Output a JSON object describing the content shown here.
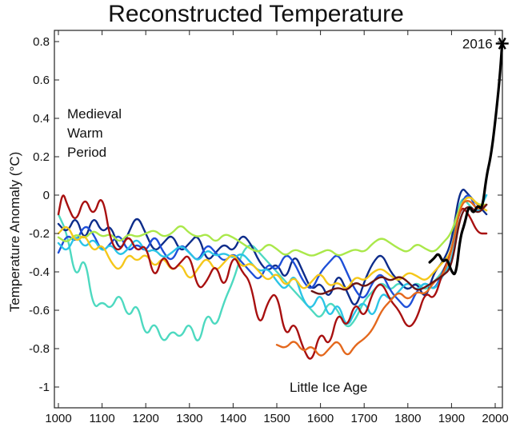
{
  "chart_data": {
    "type": "line",
    "title": "Reconstructed Temperature",
    "xlabel": "",
    "ylabel": "Temperature Anomaly (°C)",
    "xlim": [
      1000,
      2000
    ],
    "ylim": [
      -1.05,
      0.85
    ],
    "xticks": [
      1000,
      1100,
      1200,
      1300,
      1400,
      1500,
      1600,
      1700,
      1800,
      1900,
      2000
    ],
    "yticks": [
      -1,
      -0.8,
      -0.6,
      -0.4,
      -0.2,
      0,
      0.2,
      0.4,
      0.6,
      0.8
    ],
    "ytick_labels": [
      "-1",
      "-0.8",
      "-0.6",
      "-0.4",
      "-0.2",
      "0",
      "0.2",
      "0.4",
      "0.6",
      "0.8"
    ],
    "grid": false,
    "annotations": {
      "medieval": [
        "Medieval",
        "Warm",
        "Period"
      ],
      "little_ice_age": "Little Ice Age",
      "marker_label": "2016",
      "marker": {
        "x": 2016,
        "y": 0.79
      }
    },
    "series": [
      {
        "color": "#4dd9c0",
        "x": [
          1000,
          1020,
          1040,
          1060,
          1080,
          1100,
          1120,
          1140,
          1160,
          1180,
          1200,
          1220,
          1240,
          1260,
          1280,
          1300,
          1320,
          1340,
          1360,
          1380,
          1400,
          1420,
          1440,
          1460,
          1480,
          1500,
          1520,
          1540,
          1560,
          1580,
          1600,
          1620,
          1640,
          1660,
          1680,
          1700,
          1720,
          1740,
          1760,
          1780,
          1800,
          1820,
          1840,
          1860,
          1880,
          1900,
          1920,
          1940,
          1960,
          1980
        ],
        "y": [
          -0.1,
          -0.2,
          -0.45,
          -0.3,
          -0.6,
          -0.55,
          -0.6,
          -0.5,
          -0.65,
          -0.55,
          -0.75,
          -0.65,
          -0.78,
          -0.7,
          -0.75,
          -0.65,
          -0.8,
          -0.6,
          -0.7,
          -0.55,
          -0.45,
          -0.3,
          -0.25,
          -0.3,
          -0.35,
          -0.4,
          -0.45,
          -0.5,
          -0.55,
          -0.6,
          -0.65,
          -0.55,
          -0.6,
          -0.7,
          -0.65,
          -0.55,
          -0.5,
          -0.45,
          -0.5,
          -0.45,
          -0.5,
          -0.45,
          -0.5,
          -0.45,
          -0.4,
          -0.3,
          0.0,
          -0.05,
          -0.1,
          -0.05
        ]
      },
      {
        "color": "#0d2c8a",
        "x": [
          1000,
          1020,
          1040,
          1060,
          1080,
          1100,
          1120,
          1140,
          1160,
          1180,
          1200,
          1220,
          1240,
          1260,
          1280,
          1300,
          1320,
          1340,
          1360,
          1380,
          1400,
          1420,
          1440,
          1460,
          1480,
          1500,
          1520,
          1540,
          1560,
          1580,
          1600,
          1620,
          1640,
          1660,
          1680,
          1700,
          1720,
          1740,
          1760,
          1780,
          1800,
          1820,
          1840,
          1860,
          1880,
          1900,
          1920,
          1940,
          1960,
          1980
        ],
        "y": [
          -0.15,
          -0.2,
          -0.1,
          -0.25,
          -0.1,
          -0.2,
          -0.15,
          -0.3,
          -0.2,
          -0.1,
          -0.2,
          -0.3,
          -0.25,
          -0.2,
          -0.3,
          -0.25,
          -0.2,
          -0.35,
          -0.3,
          -0.25,
          -0.3,
          -0.2,
          -0.25,
          -0.35,
          -0.4,
          -0.35,
          -0.45,
          -0.3,
          -0.4,
          -0.5,
          -0.45,
          -0.55,
          -0.4,
          -0.5,
          -0.6,
          -0.45,
          -0.35,
          -0.3,
          -0.4,
          -0.45,
          -0.5,
          -0.45,
          -0.55,
          -0.4,
          -0.35,
          -0.25,
          0.05,
          0.0,
          -0.05,
          -0.1
        ]
      },
      {
        "color": "#1e4fd8",
        "x": [
          1000,
          1020,
          1040,
          1060,
          1080,
          1100,
          1120,
          1140,
          1160,
          1180,
          1200,
          1220,
          1240,
          1260,
          1280,
          1300,
          1320,
          1340,
          1360,
          1380,
          1400,
          1420,
          1440,
          1460,
          1480,
          1500,
          1520,
          1540,
          1560,
          1580,
          1600,
          1620,
          1640,
          1660,
          1680,
          1700,
          1720,
          1740,
          1760,
          1780,
          1800,
          1820,
          1840,
          1860,
          1880,
          1900,
          1920,
          1940,
          1960,
          1980
        ],
        "y": [
          -0.3,
          -0.2,
          -0.25,
          -0.15,
          -0.2,
          -0.3,
          -0.25,
          -0.2,
          -0.3,
          -0.25,
          -0.3,
          -0.2,
          -0.3,
          -0.35,
          -0.25,
          -0.3,
          -0.35,
          -0.25,
          -0.3,
          -0.35,
          -0.3,
          -0.35,
          -0.4,
          -0.45,
          -0.35,
          -0.4,
          -0.3,
          -0.35,
          -0.45,
          -0.5,
          -0.4,
          -0.35,
          -0.3,
          -0.4,
          -0.5,
          -0.55,
          -0.45,
          -0.4,
          -0.5,
          -0.55,
          -0.6,
          -0.5,
          -0.45,
          -0.5,
          -0.4,
          -0.3,
          -0.05,
          0.02,
          -0.1,
          -0.05
        ]
      },
      {
        "color": "#2bc4e6",
        "x": [
          1000,
          1020,
          1040,
          1060,
          1080,
          1100,
          1120,
          1140,
          1160,
          1180,
          1200,
          1220,
          1240,
          1260,
          1280,
          1300,
          1320,
          1340,
          1360,
          1380,
          1400,
          1420,
          1440,
          1460,
          1480,
          1500,
          1520,
          1540,
          1560,
          1580,
          1600,
          1620,
          1640,
          1660,
          1680,
          1700,
          1720,
          1740,
          1760,
          1780,
          1800,
          1820,
          1840,
          1860,
          1880,
          1900,
          1920,
          1940,
          1960,
          1980
        ],
        "y": [
          -0.25,
          -0.3,
          -0.2,
          -0.28,
          -0.22,
          -0.3,
          -0.25,
          -0.32,
          -0.28,
          -0.22,
          -0.3,
          -0.28,
          -0.33,
          -0.3,
          -0.26,
          -0.3,
          -0.35,
          -0.28,
          -0.32,
          -0.3,
          -0.33,
          -0.3,
          -0.35,
          -0.4,
          -0.38,
          -0.45,
          -0.5,
          -0.4,
          -0.55,
          -0.6,
          -0.5,
          -0.65,
          -0.55,
          -0.7,
          -0.6,
          -0.55,
          -0.65,
          -0.5,
          -0.55,
          -0.5,
          -0.45,
          -0.5,
          -0.45,
          -0.5,
          -0.42,
          -0.35,
          -0.1,
          -0.05,
          -0.1,
          0.0
        ]
      },
      {
        "color": "#aae84a",
        "x": [
          1000,
          1020,
          1040,
          1060,
          1080,
          1100,
          1120,
          1140,
          1160,
          1180,
          1200,
          1220,
          1240,
          1260,
          1280,
          1300,
          1320,
          1340,
          1360,
          1380,
          1400,
          1420,
          1440,
          1460,
          1480,
          1500,
          1520,
          1540,
          1560,
          1580,
          1600,
          1620,
          1640,
          1660,
          1680,
          1700,
          1720,
          1740,
          1760,
          1780,
          1800,
          1820,
          1840,
          1860,
          1880,
          1900,
          1920,
          1940,
          1960,
          1980
        ],
        "y": [
          -0.22,
          -0.25,
          -0.2,
          -0.23,
          -0.18,
          -0.22,
          -0.2,
          -0.25,
          -0.2,
          -0.22,
          -0.2,
          -0.18,
          -0.22,
          -0.2,
          -0.15,
          -0.2,
          -0.22,
          -0.2,
          -0.25,
          -0.2,
          -0.22,
          -0.25,
          -0.28,
          -0.3,
          -0.25,
          -0.28,
          -0.32,
          -0.28,
          -0.3,
          -0.32,
          -0.3,
          -0.28,
          -0.32,
          -0.3,
          -0.28,
          -0.3,
          -0.25,
          -0.22,
          -0.25,
          -0.28,
          -0.3,
          -0.25,
          -0.28,
          -0.3,
          -0.25,
          -0.2,
          -0.05,
          0.0,
          -0.05,
          -0.05
        ]
      },
      {
        "color": "#f5c71a",
        "x": [
          1000,
          1020,
          1040,
          1060,
          1080,
          1100,
          1120,
          1140,
          1160,
          1180,
          1200,
          1220,
          1240,
          1260,
          1280,
          1300,
          1320,
          1340,
          1360,
          1380,
          1400,
          1420,
          1440,
          1460,
          1480,
          1500,
          1520,
          1540,
          1560,
          1580,
          1600,
          1620,
          1640,
          1660,
          1680,
          1700,
          1720,
          1740,
          1760,
          1780,
          1800,
          1820,
          1840,
          1860,
          1880,
          1900,
          1920,
          1940,
          1960,
          1980
        ],
        "y": [
          -0.2,
          -0.15,
          -0.25,
          -0.2,
          -0.3,
          -0.25,
          -0.35,
          -0.4,
          -0.3,
          -0.35,
          -0.3,
          -0.38,
          -0.32,
          -0.4,
          -0.35,
          -0.45,
          -0.38,
          -0.32,
          -0.4,
          -0.35,
          -0.3,
          -0.38,
          -0.35,
          -0.4,
          -0.45,
          -0.4,
          -0.48,
          -0.42,
          -0.5,
          -0.45,
          -0.4,
          -0.48,
          -0.45,
          -0.5,
          -0.42,
          -0.45,
          -0.4,
          -0.38,
          -0.42,
          -0.45,
          -0.4,
          -0.42,
          -0.45,
          -0.4,
          -0.35,
          -0.3,
          -0.05,
          0.0,
          -0.05,
          -0.08
        ]
      },
      {
        "color": "#a81010",
        "x": [
          1000,
          1010,
          1020,
          1040,
          1060,
          1080,
          1100,
          1120,
          1140,
          1160,
          1180,
          1200,
          1220,
          1240,
          1260,
          1280,
          1300,
          1320,
          1340,
          1360,
          1380,
          1400,
          1420,
          1440,
          1460,
          1480,
          1500,
          1520,
          1540,
          1560,
          1580,
          1600,
          1620,
          1640,
          1660,
          1680,
          1700,
          1720,
          1740,
          1760,
          1780,
          1800,
          1820,
          1840,
          1860,
          1880,
          1900,
          1920,
          1940,
          1960,
          1980
        ],
        "y": [
          -0.1,
          0.02,
          -0.05,
          -0.15,
          0.0,
          -0.12,
          0.02,
          -0.25,
          -0.3,
          -0.2,
          -0.3,
          -0.25,
          -0.45,
          -0.3,
          -0.4,
          -0.35,
          -0.3,
          -0.5,
          -0.45,
          -0.35,
          -0.5,
          -0.3,
          -0.4,
          -0.45,
          -0.7,
          -0.55,
          -0.5,
          -0.75,
          -0.65,
          -0.8,
          -0.88,
          -0.7,
          -0.8,
          -0.6,
          -0.7,
          -0.55,
          -0.65,
          -0.5,
          -0.45,
          -0.55,
          -0.6,
          -0.7,
          -0.65,
          -0.5,
          -0.55,
          -0.4,
          -0.3,
          -0.05,
          -0.1,
          -0.2,
          -0.2
        ]
      },
      {
        "color": "#e4681d",
        "x": [
          1500,
          1520,
          1540,
          1560,
          1580,
          1600,
          1620,
          1640,
          1660,
          1680,
          1700,
          1720,
          1740,
          1760,
          1780,
          1800,
          1820,
          1840,
          1860,
          1880,
          1900,
          1920,
          1940,
          1960,
          1980
        ],
        "y": [
          -0.78,
          -0.8,
          -0.75,
          -0.82,
          -0.78,
          -0.85,
          -0.8,
          -0.75,
          -0.85,
          -0.78,
          -0.75,
          -0.7,
          -0.6,
          -0.55,
          -0.5,
          -0.55,
          -0.5,
          -0.52,
          -0.45,
          -0.42,
          -0.3,
          -0.05,
          -0.02,
          -0.08,
          -0.05
        ]
      },
      {
        "color": "#6b1414",
        "x": [
          1580,
          1600,
          1620,
          1640,
          1660,
          1680,
          1700,
          1720,
          1740,
          1760,
          1780,
          1800,
          1820,
          1840,
          1860,
          1880,
          1900,
          1920,
          1940,
          1960,
          1980
        ],
        "y": [
          -0.5,
          -0.52,
          -0.5,
          -0.48,
          -0.5,
          -0.45,
          -0.48,
          -0.45,
          -0.42,
          -0.45,
          -0.42,
          -0.45,
          -0.5,
          -0.48,
          -0.45,
          -0.42,
          -0.38,
          -0.1,
          -0.05,
          -0.1,
          -0.05
        ]
      },
      {
        "color": "#000000",
        "x": [
          1850,
          1860,
          1870,
          1880,
          1890,
          1900,
          1910,
          1920,
          1930,
          1940,
          1950,
          1960,
          1970,
          1980,
          1990,
          2000,
          2010,
          2016
        ],
        "y": [
          -0.35,
          -0.33,
          -0.3,
          -0.35,
          -0.33,
          -0.4,
          -0.42,
          -0.22,
          -0.15,
          -0.05,
          -0.1,
          -0.05,
          -0.08,
          0.1,
          0.2,
          0.38,
          0.6,
          0.79
        ]
      }
    ]
  }
}
